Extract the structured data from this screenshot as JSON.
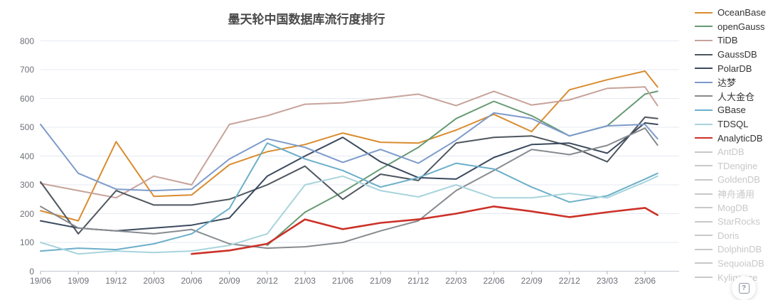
{
  "title": {
    "text": "墨天轮中国数据库流行度排行"
  },
  "help_button": {
    "glyph": "?"
  },
  "colors": {
    "grid": "#E4E9F2",
    "axis_line": "#C2C8D1",
    "tick": "#A9AFB8",
    "axis_text": "#6E7079",
    "title_text": "#4a4a4a",
    "legend_text": "#333333",
    "legend_disabled": "#C8C8C8"
  },
  "y_axis": {
    "ticks": [
      0,
      100,
      200,
      300,
      400,
      500,
      600,
      700,
      800
    ]
  },
  "x_axis": {
    "labels": [
      "19/06",
      "19/09",
      "19/12",
      "20/03",
      "20/06",
      "20/09",
      "20/12",
      "21/03",
      "21/06",
      "21/09",
      "21/12",
      "22/03",
      "22/06",
      "22/09",
      "22/12",
      "23/03",
      "23/06"
    ]
  },
  "legend": {
    "items": [
      {
        "label": "OceanBase",
        "color": "#D98C2F",
        "enabled": true
      },
      {
        "label": "openGauss",
        "color": "#679A74",
        "enabled": true
      },
      {
        "label": "TiDB",
        "color": "#C7A39A",
        "enabled": true
      },
      {
        "label": "GaussDB",
        "color": "#4E565E",
        "enabled": true
      },
      {
        "label": "PolarDB",
        "color": "#3B4A5E",
        "enabled": true
      },
      {
        "label": "达梦",
        "color": "#7D9BCB",
        "enabled": true
      },
      {
        "label": "人大金仓",
        "color": "#878B8F",
        "enabled": true
      },
      {
        "label": "GBase",
        "color": "#6CAFC9",
        "enabled": true
      },
      {
        "label": "TDSQL",
        "color": "#A8D4DC",
        "enabled": true
      },
      {
        "label": "AnalyticDB",
        "color": "#CC3128",
        "enabled": true
      },
      {
        "label": "AntDB",
        "color": "#C8C8C8",
        "enabled": false
      },
      {
        "label": "TDengine",
        "color": "#C8C8C8",
        "enabled": false
      },
      {
        "label": "GoldenDB",
        "color": "#C8C8C8",
        "enabled": false
      },
      {
        "label": "神舟通用",
        "color": "#C8C8C8",
        "enabled": false
      },
      {
        "label": "MogDB",
        "color": "#C8C8C8",
        "enabled": false
      },
      {
        "label": "StarRocks",
        "color": "#C8C8C8",
        "enabled": false
      },
      {
        "label": "Doris",
        "color": "#C8C8C8",
        "enabled": false
      },
      {
        "label": "DolphinDB",
        "color": "#C8C8C8",
        "enabled": false
      },
      {
        "label": "SequoiaDB",
        "color": "#C8C8C8",
        "enabled": false
      },
      {
        "label": "Kyligence",
        "color": "#C8C8C8",
        "enabled": false
      }
    ]
  },
  "chart_data": {
    "type": "line",
    "title": "墨天轮中国数据库流行度排行",
    "xlabel": "",
    "ylabel": "",
    "ylim": [
      0,
      800
    ],
    "grid": true,
    "legend_position": "right",
    "x_tick_labels": [
      "19/06",
      "19/09",
      "19/12",
      "20/03",
      "20/06",
      "20/09",
      "20/12",
      "21/03",
      "21/06",
      "21/09",
      "21/12",
      "22/03",
      "22/06",
      "22/09",
      "22/12",
      "23/03",
      "23/06"
    ],
    "x_months": [
      0,
      3,
      6,
      9,
      12,
      15,
      18,
      21,
      24,
      27,
      30,
      33,
      36,
      39,
      42,
      45,
      48,
      49
    ],
    "series": [
      {
        "name": "OceanBase",
        "color": "#D98C2F",
        "values": [
          210,
          175,
          450,
          260,
          265,
          370,
          415,
          440,
          480,
          448,
          445,
          490,
          545,
          485,
          630,
          665,
          695,
          640
        ]
      },
      {
        "name": "openGauss",
        "color": "#679A74",
        "values": [
          null,
          null,
          null,
          null,
          null,
          null,
          90,
          205,
          275,
          355,
          430,
          530,
          590,
          540,
          470,
          505,
          615,
          625
        ]
      },
      {
        "name": "TiDB",
        "color": "#C7A39A",
        "values": [
          305,
          280,
          255,
          330,
          300,
          510,
          540,
          580,
          585,
          600,
          615,
          575,
          625,
          577,
          595,
          635,
          640,
          575
        ]
      },
      {
        "name": "GaussDB",
        "color": "#4E565E",
        "values": [
          310,
          130,
          280,
          230,
          230,
          250,
          300,
          365,
          250,
          337,
          315,
          445,
          465,
          470,
          435,
          380,
          535,
          530
        ]
      },
      {
        "name": "PolarDB",
        "color": "#3B4A5E",
        "values": [
          175,
          150,
          140,
          150,
          160,
          185,
          330,
          400,
          465,
          380,
          325,
          320,
          395,
          440,
          445,
          410,
          515,
          510
        ]
      },
      {
        "name": "达梦",
        "color": "#7D9BCB",
        "values": [
          510,
          340,
          285,
          280,
          285,
          390,
          460,
          430,
          378,
          423,
          375,
          455,
          550,
          530,
          470,
          505,
          510,
          460
        ]
      },
      {
        "name": "人大金仓",
        "color": "#878B8F",
        "values": [
          225,
          150,
          140,
          130,
          145,
          95,
          80,
          85,
          100,
          140,
          175,
          280,
          350,
          423,
          405,
          437,
          497,
          438
        ]
      },
      {
        "name": "GBase",
        "color": "#6CAFC9",
        "values": [
          70,
          80,
          75,
          95,
          130,
          218,
          445,
          390,
          350,
          292,
          325,
          375,
          355,
          292,
          240,
          262,
          320,
          340
        ]
      },
      {
        "name": "TDSQL",
        "color": "#A8D4DC",
        "values": [
          100,
          60,
          70,
          65,
          70,
          90,
          130,
          300,
          330,
          280,
          258,
          300,
          255,
          255,
          270,
          255,
          310,
          330
        ]
      },
      {
        "name": "AnalyticDB",
        "color": "#CC3128",
        "values": [
          null,
          null,
          null,
          null,
          60,
          72,
          95,
          180,
          146,
          168,
          180,
          200,
          225,
          208,
          188,
          205,
          220,
          195
        ]
      }
    ]
  }
}
